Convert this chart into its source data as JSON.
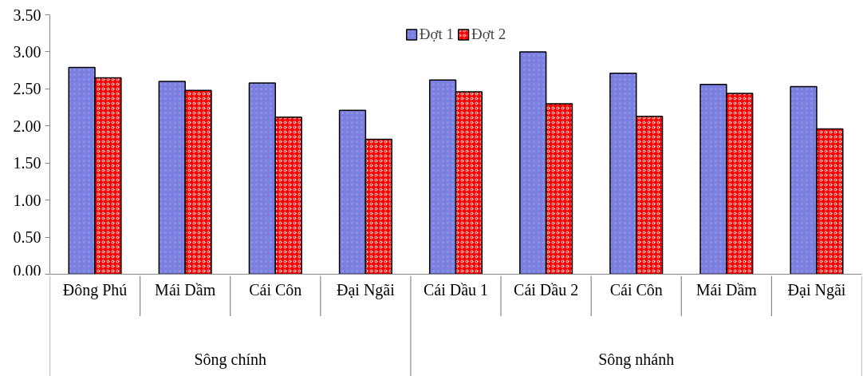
{
  "chart_data": {
    "type": "bar",
    "categories": [
      "Đông Phú",
      "Mái Dầm",
      "Cái Côn",
      "Đại Ngãi",
      "Cái Dầu 1",
      "Cái Dầu 2",
      "Cái Côn",
      "Mái Dầm",
      "Đại Ngãi"
    ],
    "series": [
      {
        "name": "Đợt 1",
        "color": "#7b7fe0",
        "values": [
          2.79,
          2.6,
          2.58,
          2.21,
          2.62,
          3.0,
          2.71,
          2.56,
          2.53
        ]
      },
      {
        "name": "Đợt 2",
        "color": "#ff0000",
        "values": [
          2.65,
          2.48,
          2.12,
          1.82,
          2.46,
          2.3,
          2.13,
          2.44,
          1.96
        ]
      }
    ],
    "ylim": [
      0,
      3.5
    ],
    "yticks": [
      {
        "value": 0,
        "label": "0.00"
      },
      {
        "value": 0.5,
        "label": "0.50"
      },
      {
        "value": 1,
        "label": "1.00"
      },
      {
        "value": 1.5,
        "label": "1.50"
      },
      {
        "value": 2,
        "label": "2.00"
      },
      {
        "value": 2.5,
        "label": "2.50"
      },
      {
        "value": 3,
        "label": "3.00"
      },
      {
        "value": 3.5,
        "label": "3.50"
      }
    ],
    "grid": false,
    "legend": "top",
    "annotations": [
      "Sông chính",
      "Sông nhánh"
    ]
  }
}
